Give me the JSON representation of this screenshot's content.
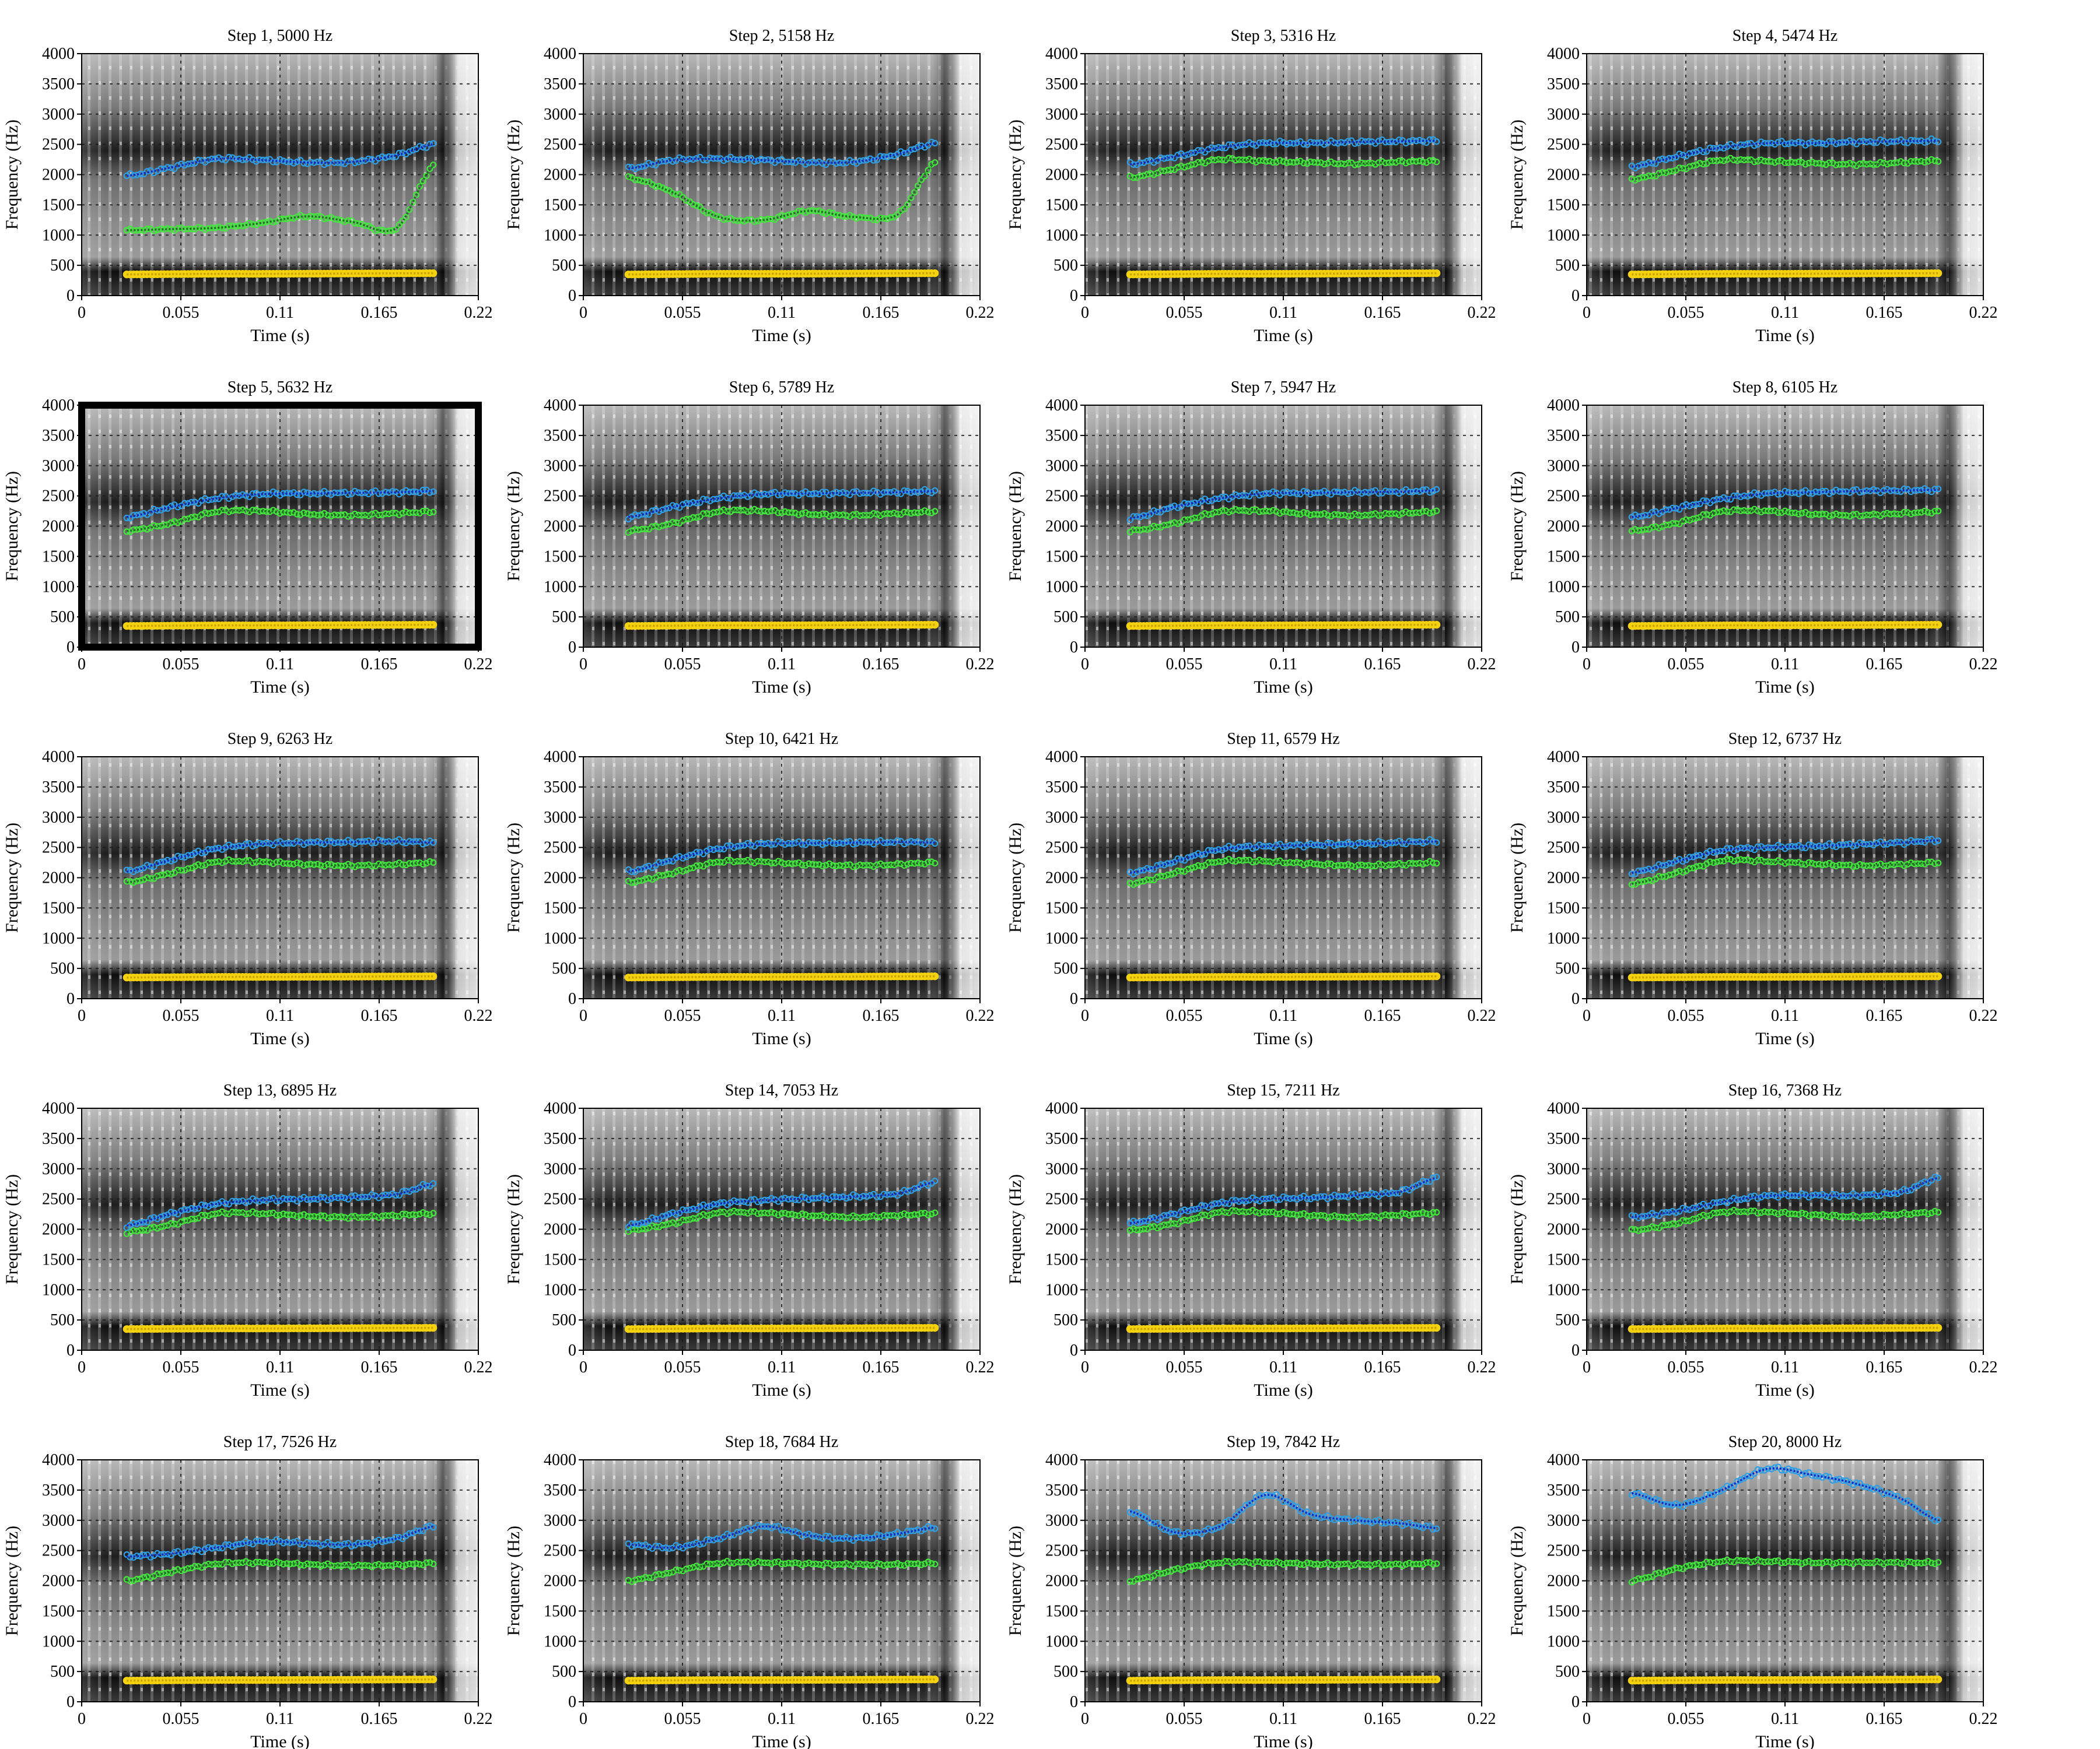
{
  "chart_data": {
    "type": "scatter",
    "figure_kind": "spectrogram grid with formant tracks",
    "layout": {
      "rows": 5,
      "cols": 4
    },
    "xlabel": "Time (s)",
    "ylabel": "Frequency (Hz)",
    "xlim": [
      0,
      0.22
    ],
    "ylim": [
      0,
      4000
    ],
    "xticks": [
      0,
      0.055,
      0.11,
      0.165,
      0.22
    ],
    "xtick_labels": [
      "0",
      "0.055",
      "0.11",
      "0.165",
      "0.22"
    ],
    "yticks": [
      0,
      500,
      1000,
      1500,
      2000,
      2500,
      3000,
      3500,
      4000
    ],
    "ytick_labels": [
      "0",
      "500",
      "1000",
      "1500",
      "2000",
      "2500",
      "3000",
      "3500",
      "4000"
    ],
    "grid": true,
    "highlighted_panel": 5,
    "track_colors": {
      "f1_points": "#f5d20f",
      "f1_fit": "#c9a400",
      "f2_points": "#42e83c",
      "f2_fit": "#17731a",
      "f3_points": "#2f9fe6",
      "f3_fit": "#1228c4"
    },
    "time": [
      0.025,
      0.05,
      0.075,
      0.1,
      0.125,
      0.15,
      0.175,
      0.195
    ],
    "panels": [
      {
        "title": "Step 1, 5000 Hz",
        "F1": [
          350,
          355,
          360,
          360,
          362,
          365,
          368,
          370
        ],
        "F2": [
          1080,
          1100,
          1120,
          1200,
          1310,
          1220,
          1120,
          2150
        ],
        "F3": [
          1980,
          2120,
          2260,
          2240,
          2200,
          2210,
          2320,
          2500
        ]
      },
      {
        "title": "Step 2, 5158 Hz",
        "F1": [
          350,
          355,
          360,
          360,
          362,
          365,
          368,
          370
        ],
        "F2": [
          1950,
          1700,
          1300,
          1250,
          1400,
          1300,
          1350,
          2200
        ],
        "F3": [
          2100,
          2240,
          2260,
          2240,
          2200,
          2210,
          2340,
          2520
        ]
      },
      {
        "title": "Step 3, 5316 Hz",
        "F1": [
          350,
          355,
          360,
          360,
          362,
          365,
          368,
          370
        ],
        "F2": [
          1950,
          2100,
          2250,
          2220,
          2200,
          2180,
          2210,
          2220
        ],
        "F3": [
          2170,
          2300,
          2450,
          2520,
          2520,
          2540,
          2550,
          2560
        ]
      },
      {
        "title": "Step 4, 5474 Hz",
        "F1": [
          350,
          355,
          360,
          360,
          362,
          365,
          368,
          370
        ],
        "F2": [
          1920,
          2080,
          2240,
          2220,
          2190,
          2170,
          2200,
          2230
        ],
        "F3": [
          2130,
          2300,
          2450,
          2520,
          2520,
          2540,
          2550,
          2560
        ]
      },
      {
        "title": "Step 5, 5632 Hz",
        "F1": [
          350,
          355,
          360,
          360,
          362,
          365,
          368,
          370
        ],
        "F2": [
          1920,
          2050,
          2240,
          2250,
          2200,
          2180,
          2210,
          2240
        ],
        "F3": [
          2150,
          2320,
          2460,
          2530,
          2540,
          2550,
          2560,
          2580
        ]
      },
      {
        "title": "Step 6, 5789 Hz",
        "F1": [
          350,
          355,
          360,
          360,
          362,
          365,
          368,
          370
        ],
        "F2": [
          1920,
          2050,
          2240,
          2250,
          2200,
          2180,
          2210,
          2240
        ],
        "F3": [
          2150,
          2320,
          2460,
          2530,
          2540,
          2550,
          2560,
          2580
        ]
      },
      {
        "title": "Step 7, 5947 Hz",
        "F1": [
          350,
          355,
          360,
          360,
          362,
          365,
          368,
          370
        ],
        "F2": [
          1920,
          2050,
          2240,
          2250,
          2200,
          2180,
          2210,
          2240
        ],
        "F3": [
          2130,
          2320,
          2460,
          2540,
          2550,
          2560,
          2570,
          2590
        ]
      },
      {
        "title": "Step 8, 6105 Hz",
        "F1": [
          350,
          355,
          360,
          360,
          362,
          365,
          368,
          370
        ],
        "F2": [
          1920,
          2050,
          2240,
          2250,
          2200,
          2180,
          2210,
          2240
        ],
        "F3": [
          2150,
          2300,
          2450,
          2540,
          2560,
          2580,
          2590,
          2600
        ]
      },
      {
        "title": "Step 9, 6263 Hz",
        "F1": [
          350,
          355,
          360,
          360,
          362,
          365,
          368,
          370
        ],
        "F2": [
          1920,
          2080,
          2260,
          2260,
          2220,
          2200,
          2220,
          2250
        ],
        "F3": [
          2100,
          2300,
          2480,
          2560,
          2580,
          2590,
          2600,
          2580
        ]
      },
      {
        "title": "Step 10, 6421 Hz",
        "F1": [
          350,
          355,
          360,
          360,
          362,
          365,
          368,
          370
        ],
        "F2": [
          1920,
          2080,
          2260,
          2260,
          2220,
          2200,
          2220,
          2250
        ],
        "F3": [
          2100,
          2300,
          2480,
          2560,
          2570,
          2580,
          2590,
          2580
        ]
      },
      {
        "title": "Step 11, 6579 Hz",
        "F1": [
          350,
          355,
          360,
          360,
          362,
          365,
          368,
          370
        ],
        "F2": [
          1900,
          2080,
          2270,
          2270,
          2230,
          2200,
          2220,
          2250
        ],
        "F3": [
          2080,
          2270,
          2470,
          2520,
          2540,
          2560,
          2580,
          2600
        ]
      },
      {
        "title": "Step 12, 6737 Hz",
        "F1": [
          350,
          355,
          360,
          360,
          362,
          365,
          368,
          370
        ],
        "F2": [
          1900,
          2080,
          2280,
          2270,
          2230,
          2200,
          2220,
          2250
        ],
        "F3": [
          2080,
          2270,
          2450,
          2500,
          2520,
          2550,
          2580,
          2620
        ]
      },
      {
        "title": "Step 13, 6895 Hz",
        "F1": [
          350,
          355,
          360,
          360,
          362,
          365,
          368,
          370
        ],
        "F2": [
          1950,
          2080,
          2260,
          2260,
          2220,
          2200,
          2230,
          2260
        ],
        "F3": [
          2060,
          2260,
          2420,
          2480,
          2500,
          2530,
          2580,
          2750
        ]
      },
      {
        "title": "Step 14, 7053 Hz",
        "F1": [
          350,
          355,
          360,
          360,
          362,
          365,
          368,
          370
        ],
        "F2": [
          1980,
          2100,
          2270,
          2270,
          2230,
          2200,
          2230,
          2260
        ],
        "F3": [
          2060,
          2260,
          2420,
          2480,
          2510,
          2540,
          2590,
          2780
        ]
      },
      {
        "title": "Step 15, 7211 Hz",
        "F1": [
          350,
          355,
          360,
          360,
          362,
          365,
          368,
          370
        ],
        "F2": [
          1980,
          2100,
          2280,
          2280,
          2230,
          2200,
          2240,
          2270
        ],
        "F3": [
          2100,
          2260,
          2430,
          2500,
          2520,
          2560,
          2620,
          2850
        ]
      },
      {
        "title": "Step 16, 7368 Hz",
        "F1": [
          350,
          355,
          360,
          360,
          362,
          365,
          368,
          370
        ],
        "F2": [
          1980,
          2100,
          2280,
          2280,
          2240,
          2210,
          2250,
          2280
        ],
        "F3": [
          2200,
          2300,
          2450,
          2550,
          2560,
          2560,
          2620,
          2850
        ]
      },
      {
        "title": "Step 17, 7526 Hz",
        "F1": [
          350,
          355,
          360,
          360,
          362,
          365,
          368,
          370
        ],
        "F2": [
          2000,
          2150,
          2280,
          2300,
          2270,
          2250,
          2260,
          2290
        ],
        "F3": [
          2400,
          2450,
          2550,
          2650,
          2620,
          2600,
          2700,
          2900
        ]
      },
      {
        "title": "Step 18, 7684 Hz",
        "F1": [
          350,
          355,
          360,
          360,
          362,
          365,
          368,
          370
        ],
        "F2": [
          2000,
          2150,
          2290,
          2300,
          2280,
          2270,
          2270,
          2290
        ],
        "F3": [
          2600,
          2550,
          2700,
          2900,
          2750,
          2700,
          2780,
          2880
        ]
      },
      {
        "title": "Step 19, 7842 Hz",
        "F1": [
          350,
          355,
          360,
          360,
          362,
          365,
          368,
          370
        ],
        "F2": [
          2000,
          2180,
          2300,
          2300,
          2280,
          2270,
          2270,
          2290
        ],
        "F3": [
          3150,
          2800,
          2900,
          3420,
          3100,
          3000,
          2950,
          2870
        ]
      },
      {
        "title": "Step 20, 8000 Hz",
        "F1": [
          350,
          355,
          360,
          360,
          362,
          365,
          368,
          370
        ],
        "F2": [
          2000,
          2200,
          2320,
          2320,
          2300,
          2300,
          2300,
          2300
        ],
        "F3": [
          3450,
          3250,
          3500,
          3850,
          3750,
          3600,
          3350,
          3000
        ]
      }
    ]
  }
}
